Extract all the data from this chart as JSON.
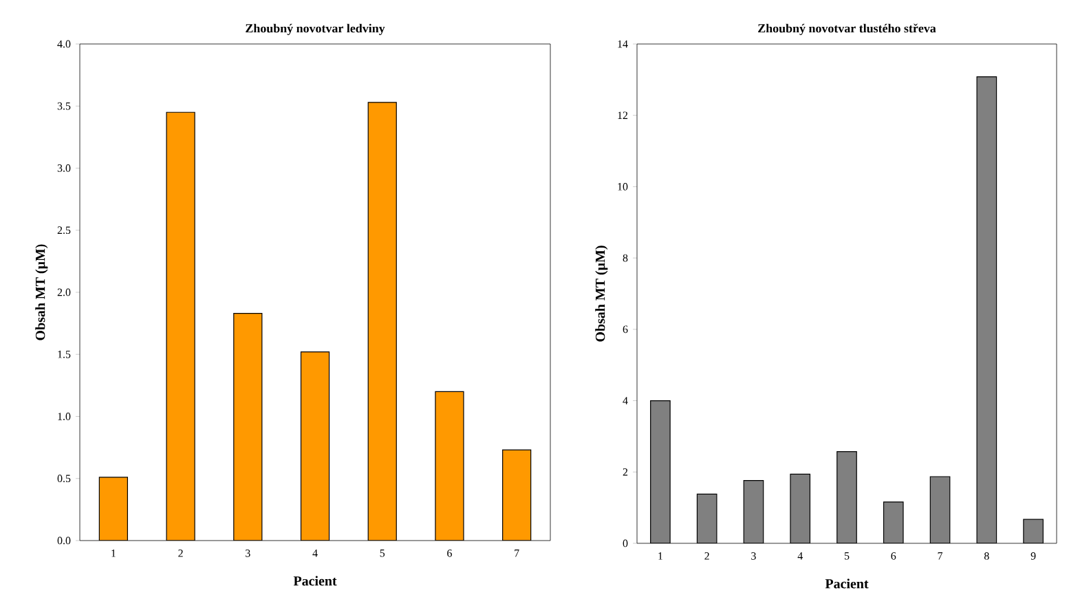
{
  "chart_data": [
    {
      "type": "bar",
      "title": "Zhoubný novotvar ledviny",
      "xlabel": "Pacient",
      "ylabel": "Obsah MT (µM)",
      "categories": [
        "1",
        "2",
        "3",
        "4",
        "5",
        "6",
        "7"
      ],
      "values": [
        0.51,
        3.45,
        1.83,
        1.52,
        3.53,
        1.2,
        0.73
      ],
      "color": "#ff9900",
      "ylim": [
        0,
        4
      ],
      "yticks": [
        {
          "value": 0,
          "label": "0.0"
        },
        {
          "value": 0.5,
          "label": "0.5"
        },
        {
          "value": 1,
          "label": "1.0"
        },
        {
          "value": 1.5,
          "label": "1.5"
        },
        {
          "value": 2,
          "label": "2.0"
        },
        {
          "value": 2.5,
          "label": "2.5"
        },
        {
          "value": 3,
          "label": "3.0"
        },
        {
          "value": 3.5,
          "label": "3.5"
        },
        {
          "value": 4,
          "label": "4.0"
        }
      ],
      "grid": false
    },
    {
      "type": "bar",
      "title": "Zhoubný novotvar tlustého střeva",
      "xlabel": "Pacient",
      "ylabel": "Obsah MT (µM)",
      "categories": [
        "1",
        "2",
        "3",
        "4",
        "5",
        "6",
        "7",
        "8",
        "9"
      ],
      "values": [
        4.0,
        1.38,
        1.76,
        1.94,
        2.57,
        1.16,
        1.87,
        13.08,
        0.67
      ],
      "color": "#808080",
      "ylim": [
        0,
        14
      ],
      "yticks": [
        0,
        2,
        4,
        6,
        8,
        10,
        12,
        14
      ],
      "grid": false
    }
  ]
}
